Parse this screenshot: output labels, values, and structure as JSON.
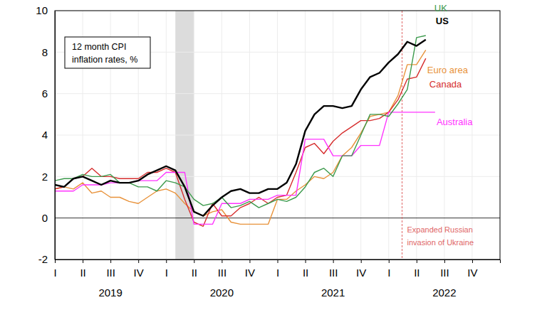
{
  "chart_data": {
    "type": "line",
    "title": [
      "12 month CPI",
      "inflation rates, %"
    ],
    "x": [
      2019,
      2019.083,
      2019.167,
      2019.25,
      2019.333,
      2019.417,
      2019.5,
      2019.583,
      2019.667,
      2019.75,
      2019.833,
      2019.917,
      2020,
      2020.083,
      2020.167,
      2020.25,
      2020.333,
      2020.417,
      2020.5,
      2020.583,
      2020.667,
      2020.75,
      2020.833,
      2020.917,
      2021,
      2021.083,
      2021.167,
      2021.25,
      2021.333,
      2021.417,
      2021.5,
      2021.583,
      2021.667,
      2021.75,
      2021.833,
      2021.917,
      2022,
      2022.083,
      2022.167,
      2022.25,
      2022.333,
      2022.417
    ],
    "series": [
      {
        "name": "Euro area",
        "color": "#e8923a",
        "values": [
          1.4,
          1.5,
          1.4,
          1.7,
          1.2,
          1.3,
          1.0,
          1.0,
          0.8,
          0.7,
          1.0,
          1.3,
          1.4,
          1.2,
          0.7,
          0.3,
          0.1,
          0.3,
          0.4,
          -0.2,
          -0.3,
          -0.3,
          -0.3,
          -0.3,
          0.9,
          0.9,
          1.3,
          1.6,
          2.0,
          1.9,
          2.2,
          3.0,
          3.4,
          4.1,
          4.9,
          5.0,
          5.1,
          5.9,
          7.4,
          7.4,
          8.1,
          null
        ]
      },
      {
        "name": "Canada",
        "color": "#d62e2e",
        "values": [
          1.4,
          1.5,
          1.9,
          2.0,
          2.4,
          2.0,
          2.0,
          1.9,
          1.9,
          1.9,
          2.2,
          2.2,
          2.4,
          2.2,
          0.9,
          -0.2,
          -0.4,
          0.7,
          0.1,
          0.1,
          0.5,
          0.7,
          1.0,
          0.7,
          1.0,
          1.1,
          2.2,
          3.4,
          3.6,
          3.1,
          3.7,
          4.1,
          4.4,
          4.7,
          4.7,
          4.8,
          5.1,
          5.7,
          6.7,
          6.8,
          7.7,
          null
        ]
      },
      {
        "name": "Australia",
        "color": "#ff33ff",
        "values": [
          1.3,
          1.3,
          1.3,
          1.6,
          1.6,
          1.6,
          1.7,
          1.7,
          1.7,
          1.8,
          1.8,
          1.8,
          2.2,
          2.2,
          2.2,
          -0.3,
          -0.3,
          -0.3,
          0.7,
          0.7,
          0.7,
          0.9,
          0.9,
          0.9,
          1.1,
          1.1,
          1.1,
          3.8,
          3.8,
          3.8,
          3.0,
          3.0,
          3.0,
          3.5,
          3.5,
          3.5,
          5.1,
          5.1,
          5.1,
          5.1,
          5.1,
          5.1
        ]
      },
      {
        "name": "UK",
        "color": "#3c9a4c",
        "values": [
          1.8,
          1.9,
          1.9,
          2.1,
          2.0,
          2.0,
          2.1,
          1.7,
          1.7,
          1.5,
          1.5,
          1.3,
          1.8,
          1.7,
          1.5,
          0.9,
          0.6,
          0.7,
          1.0,
          0.5,
          0.6,
          0.8,
          0.5,
          0.7,
          0.9,
          0.8,
          1.0,
          1.5,
          2.2,
          2.4,
          2.0,
          3.0,
          3.0,
          4.0,
          5.0,
          5.0,
          4.9,
          5.5,
          6.2,
          8.7,
          8.8,
          null
        ]
      },
      {
        "name": "US",
        "color": "#000000",
        "values": [
          1.6,
          1.5,
          1.9,
          2.0,
          1.8,
          1.6,
          1.8,
          1.7,
          1.7,
          1.8,
          2.1,
          2.3,
          2.5,
          2.3,
          1.5,
          0.3,
          0.1,
          0.6,
          1.0,
          1.3,
          1.4,
          1.2,
          1.2,
          1.4,
          1.4,
          1.7,
          2.6,
          4.2,
          5.0,
          5.4,
          5.4,
          5.3,
          5.4,
          6.2,
          6.8,
          7.0,
          7.5,
          7.9,
          8.5,
          8.3,
          8.6,
          null
        ]
      }
    ],
    "xlim": [
      2019,
      2023
    ],
    "xticks": [
      {
        "value": 2019,
        "label": "I"
      },
      {
        "value": 2019.25,
        "label": "II"
      },
      {
        "value": 2019.5,
        "label": "III"
      },
      {
        "value": 2019.75,
        "label": "IV"
      },
      {
        "value": 2020,
        "label": "I"
      },
      {
        "value": 2020.25,
        "label": "II"
      },
      {
        "value": 2020.5,
        "label": "III"
      },
      {
        "value": 2020.75,
        "label": "IV"
      },
      {
        "value": 2021,
        "label": "I"
      },
      {
        "value": 2021.25,
        "label": "II"
      },
      {
        "value": 2021.5,
        "label": "III"
      },
      {
        "value": 2021.75,
        "label": "IV"
      },
      {
        "value": 2022,
        "label": "I"
      },
      {
        "value": 2022.25,
        "label": "II"
      },
      {
        "value": 2022.5,
        "label": "III"
      },
      {
        "value": 2022.75,
        "label": "IV"
      }
    ],
    "year_labels": [
      2019,
      2020,
      2021,
      2022
    ],
    "ylim": [
      -2,
      10
    ],
    "yticks": [
      -2,
      0,
      2,
      4,
      6,
      8,
      10
    ],
    "grid": true,
    "shaded_ranges": [
      [
        2020.083,
        2020.25
      ]
    ],
    "annotation": {
      "x": 2022.12,
      "text": [
        "Expanded Russian",
        "invasion of Ukraine"
      ],
      "color": "#e06666"
    }
  }
}
